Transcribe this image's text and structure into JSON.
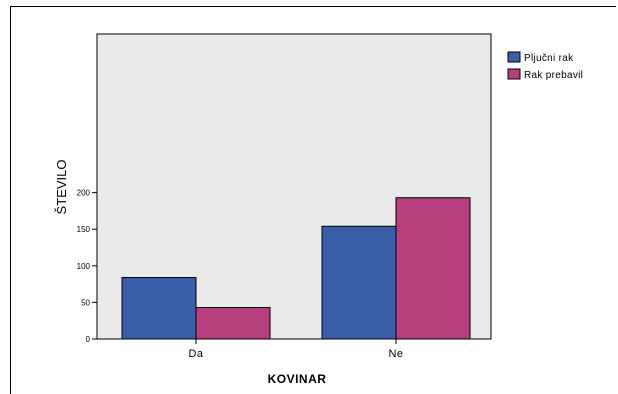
{
  "chart_data": {
    "type": "bar",
    "categories": [
      "Da",
      "Ne"
    ],
    "series": [
      {
        "name": "Pljučni rak",
        "values": [
          84,
          154
        ],
        "color": "#3a5ea8"
      },
      {
        "name": "Rak prebavil",
        "values": [
          43,
          193
        ],
        "color": "#b63f7e"
      }
    ],
    "xlabel": "KOVINAR",
    "ylabel": "ŠTEVILO",
    "ylim": [
      0,
      210
    ],
    "yticks": [
      0,
      50,
      100,
      150,
      200
    ],
    "grid": false,
    "legend_position": "top-right",
    "plot_background": "#eaeaea"
  }
}
